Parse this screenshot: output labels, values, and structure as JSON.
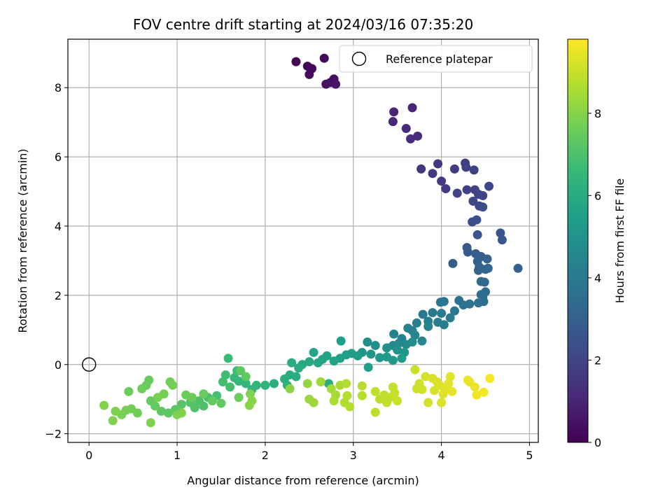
{
  "chart_data": {
    "type": "scatter",
    "title": "FOV centre drift starting at 2024/03/16 07:35:20",
    "xlabel": "Angular distance from reference (arcmin)",
    "ylabel": "Rotation from reference (arcmin)",
    "xlim": [
      -0.24,
      5.1
    ],
    "ylim": [
      -2.25,
      9.4
    ],
    "x_ticks": [
      0,
      1,
      2,
      3,
      4,
      5
    ],
    "y_ticks": [
      -2,
      0,
      2,
      4,
      6,
      8
    ],
    "grid": true,
    "colormap": "viridis",
    "colorbar": {
      "label": "Hours from first FF file",
      "range": [
        0,
        9.8
      ],
      "ticks": [
        0,
        2,
        4,
        6,
        8
      ]
    },
    "legend": {
      "position": "top-right",
      "entries": [
        {
          "label": "Reference platepar",
          "marker": "open-circle"
        }
      ]
    },
    "reference_point": {
      "x": 0,
      "y": 0
    },
    "points": [
      {
        "x": 2.35,
        "y": 8.75,
        "hours": 0.1
      },
      {
        "x": 2.48,
        "y": 8.62,
        "hours": 0.15
      },
      {
        "x": 2.53,
        "y": 8.55,
        "hours": 0.2
      },
      {
        "x": 2.67,
        "y": 8.85,
        "hours": 0.25
      },
      {
        "x": 2.5,
        "y": 8.38,
        "hours": 0.3
      },
      {
        "x": 2.78,
        "y": 8.25,
        "hours": 0.35
      },
      {
        "x": 2.74,
        "y": 8.15,
        "hours": 0.4
      },
      {
        "x": 2.69,
        "y": 8.1,
        "hours": 0.45
      },
      {
        "x": 2.8,
        "y": 8.1,
        "hours": 0.5
      },
      {
        "x": 3.46,
        "y": 7.3,
        "hours": 1.0
      },
      {
        "x": 3.67,
        "y": 7.42,
        "hours": 1.05
      },
      {
        "x": 3.45,
        "y": 7.02,
        "hours": 1.1
      },
      {
        "x": 3.6,
        "y": 6.82,
        "hours": 1.15
      },
      {
        "x": 3.73,
        "y": 6.6,
        "hours": 1.2
      },
      {
        "x": 3.65,
        "y": 6.52,
        "hours": 1.25
      },
      {
        "x": 3.96,
        "y": 5.8,
        "hours": 1.55
      },
      {
        "x": 3.77,
        "y": 5.65,
        "hours": 1.6
      },
      {
        "x": 3.9,
        "y": 5.52,
        "hours": 1.62
      },
      {
        "x": 4.0,
        "y": 5.3,
        "hours": 1.65
      },
      {
        "x": 4.05,
        "y": 5.08,
        "hours": 1.7
      },
      {
        "x": 4.15,
        "y": 5.65,
        "hours": 1.75
      },
      {
        "x": 4.27,
        "y": 5.82,
        "hours": 1.8
      },
      {
        "x": 4.28,
        "y": 5.7,
        "hours": 1.82
      },
      {
        "x": 4.37,
        "y": 5.62,
        "hours": 1.85
      },
      {
        "x": 4.29,
        "y": 5.05,
        "hours": 1.9
      },
      {
        "x": 4.38,
        "y": 5.05,
        "hours": 1.92
      },
      {
        "x": 4.18,
        "y": 4.95,
        "hours": 1.95
      },
      {
        "x": 4.42,
        "y": 4.92,
        "hours": 2.0
      },
      {
        "x": 4.47,
        "y": 4.88,
        "hours": 2.02
      },
      {
        "x": 4.54,
        "y": 5.15,
        "hours": 2.05
      },
      {
        "x": 4.36,
        "y": 4.72,
        "hours": 2.1
      },
      {
        "x": 4.43,
        "y": 4.58,
        "hours": 2.15
      },
      {
        "x": 4.47,
        "y": 4.55,
        "hours": 2.2
      },
      {
        "x": 4.35,
        "y": 4.12,
        "hours": 2.3
      },
      {
        "x": 4.4,
        "y": 4.18,
        "hours": 2.35
      },
      {
        "x": 4.41,
        "y": 3.75,
        "hours": 2.45
      },
      {
        "x": 4.67,
        "y": 3.8,
        "hours": 2.6
      },
      {
        "x": 4.69,
        "y": 3.6,
        "hours": 2.65
      },
      {
        "x": 4.29,
        "y": 3.38,
        "hours": 2.7
      },
      {
        "x": 4.3,
        "y": 3.25,
        "hours": 2.75
      },
      {
        "x": 4.39,
        "y": 3.2,
        "hours": 2.8
      },
      {
        "x": 4.45,
        "y": 3.12,
        "hours": 2.85
      },
      {
        "x": 4.13,
        "y": 2.92,
        "hours": 2.9
      },
      {
        "x": 4.41,
        "y": 2.98,
        "hours": 2.95
      },
      {
        "x": 4.52,
        "y": 3.05,
        "hours": 3.0
      },
      {
        "x": 4.87,
        "y": 2.78,
        "hours": 3.0
      },
      {
        "x": 4.43,
        "y": 2.82,
        "hours": 3.05
      },
      {
        "x": 4.42,
        "y": 2.72,
        "hours": 3.1
      },
      {
        "x": 4.5,
        "y": 2.75,
        "hours": 3.15
      },
      {
        "x": 4.53,
        "y": 2.78,
        "hours": 3.18
      },
      {
        "x": 4.45,
        "y": 2.4,
        "hours": 3.25
      },
      {
        "x": 4.49,
        "y": 2.38,
        "hours": 3.3
      },
      {
        "x": 4.5,
        "y": 2.1,
        "hours": 3.4
      },
      {
        "x": 4.45,
        "y": 2.02,
        "hours": 3.45
      },
      {
        "x": 4.47,
        "y": 1.95,
        "hours": 3.5
      },
      {
        "x": 4.48,
        "y": 1.82,
        "hours": 3.55
      },
      {
        "x": 4.42,
        "y": 1.78,
        "hours": 3.6
      },
      {
        "x": 4.2,
        "y": 1.85,
        "hours": 3.65
      },
      {
        "x": 4.25,
        "y": 1.72,
        "hours": 3.7
      },
      {
        "x": 4.32,
        "y": 1.75,
        "hours": 3.75
      },
      {
        "x": 4.03,
        "y": 1.82,
        "hours": 3.8
      },
      {
        "x": 3.99,
        "y": 1.8,
        "hours": 3.85
      },
      {
        "x": 4.15,
        "y": 1.55,
        "hours": 3.9
      },
      {
        "x": 3.79,
        "y": 1.45,
        "hours": 3.95
      },
      {
        "x": 3.9,
        "y": 1.5,
        "hours": 4.0
      },
      {
        "x": 4.0,
        "y": 1.48,
        "hours": 4.05
      },
      {
        "x": 4.1,
        "y": 1.35,
        "hours": 4.1
      },
      {
        "x": 3.72,
        "y": 1.2,
        "hours": 4.15
      },
      {
        "x": 3.85,
        "y": 1.25,
        "hours": 4.18
      },
      {
        "x": 3.96,
        "y": 1.22,
        "hours": 4.2
      },
      {
        "x": 4.03,
        "y": 1.15,
        "hours": 4.25
      },
      {
        "x": 3.62,
        "y": 1.05,
        "hours": 4.3
      },
      {
        "x": 3.67,
        "y": 0.98,
        "hours": 4.35
      },
      {
        "x": 3.85,
        "y": 1.1,
        "hours": 4.38
      },
      {
        "x": 3.46,
        "y": 0.88,
        "hours": 4.4
      },
      {
        "x": 3.55,
        "y": 0.75,
        "hours": 4.45
      },
      {
        "x": 3.7,
        "y": 0.85,
        "hours": 4.5
      },
      {
        "x": 3.78,
        "y": 0.68,
        "hours": 4.55
      },
      {
        "x": 3.45,
        "y": 0.55,
        "hours": 4.6
      },
      {
        "x": 3.52,
        "y": 0.62,
        "hours": 4.65
      },
      {
        "x": 3.6,
        "y": 0.58,
        "hours": 4.7
      },
      {
        "x": 3.67,
        "y": 0.65,
        "hours": 4.75
      },
      {
        "x": 3.16,
        "y": 0.65,
        "hours": 4.8
      },
      {
        "x": 3.25,
        "y": 0.55,
        "hours": 4.85
      },
      {
        "x": 3.38,
        "y": 0.48,
        "hours": 4.9
      },
      {
        "x": 3.5,
        "y": 0.42,
        "hours": 4.95
      },
      {
        "x": 3.58,
        "y": 0.35,
        "hours": 5.0
      },
      {
        "x": 3.1,
        "y": 0.35,
        "hours": 5.05
      },
      {
        "x": 3.2,
        "y": 0.3,
        "hours": 5.1
      },
      {
        "x": 3.3,
        "y": 0.2,
        "hours": 5.15
      },
      {
        "x": 3.38,
        "y": 0.22,
        "hours": 5.2
      },
      {
        "x": 3.45,
        "y": 0.12,
        "hours": 5.25
      },
      {
        "x": 3.55,
        "y": 0.18,
        "hours": 5.3
      },
      {
        "x": 3.05,
        "y": 0.25,
        "hours": 5.35
      },
      {
        "x": 2.98,
        "y": 0.32,
        "hours": 5.4
      },
      {
        "x": 2.92,
        "y": 0.28,
        "hours": 5.45
      },
      {
        "x": 3.17,
        "y": -0.08,
        "hours": 5.5
      },
      {
        "x": 2.86,
        "y": 0.68,
        "hours": 5.5
      },
      {
        "x": 2.85,
        "y": 0.18,
        "hours": 5.55
      },
      {
        "x": 2.78,
        "y": 0.1,
        "hours": 5.6
      },
      {
        "x": 2.7,
        "y": 0.25,
        "hours": 5.65
      },
      {
        "x": 2.65,
        "y": 0.15,
        "hours": 5.7
      },
      {
        "x": 2.55,
        "y": 0.35,
        "hours": 5.75
      },
      {
        "x": 2.6,
        "y": 0.05,
        "hours": 5.8
      },
      {
        "x": 2.5,
        "y": 0.08,
        "hours": 5.85
      },
      {
        "x": 2.42,
        "y": 0.0,
        "hours": 5.9
      },
      {
        "x": 2.38,
        "y": -0.1,
        "hours": 5.95
      },
      {
        "x": 2.3,
        "y": 0.05,
        "hours": 6.0
      },
      {
        "x": 2.28,
        "y": -0.3,
        "hours": 6.05
      },
      {
        "x": 2.35,
        "y": -0.35,
        "hours": 6.1
      },
      {
        "x": 2.22,
        "y": -0.42,
        "hours": 6.15
      },
      {
        "x": 2.1,
        "y": -0.55,
        "hours": 6.2
      },
      {
        "x": 2.72,
        "y": -0.55,
        "hours": 6.1
      },
      {
        "x": 2.25,
        "y": -0.6,
        "hours": 6.25
      },
      {
        "x": 2.0,
        "y": -0.6,
        "hours": 6.3
      },
      {
        "x": 1.85,
        "y": -0.72,
        "hours": 6.4
      },
      {
        "x": 1.9,
        "y": -0.6,
        "hours": 6.45
      },
      {
        "x": 1.78,
        "y": -0.55,
        "hours": 6.5
      },
      {
        "x": 1.7,
        "y": -0.48,
        "hours": 6.55
      },
      {
        "x": 1.65,
        "y": -0.38,
        "hours": 6.6
      },
      {
        "x": 1.58,
        "y": 0.18,
        "hours": 6.65
      },
      {
        "x": 1.68,
        "y": -0.18,
        "hours": 6.7
      },
      {
        "x": 1.55,
        "y": -0.3,
        "hours": 6.75
      },
      {
        "x": 1.52,
        "y": -0.5,
        "hours": 6.8
      },
      {
        "x": 1.6,
        "y": -0.65,
        "hours": 6.85
      },
      {
        "x": 1.45,
        "y": -0.9,
        "hours": 6.9
      },
      {
        "x": 1.35,
        "y": -0.95,
        "hours": 6.95
      },
      {
        "x": 1.25,
        "y": -1.05,
        "hours": 7.0
      },
      {
        "x": 1.3,
        "y": -1.2,
        "hours": 7.05
      },
      {
        "x": 1.2,
        "y": -1.25,
        "hours": 7.1
      },
      {
        "x": 1.15,
        "y": -1.1,
        "hours": 7.15
      },
      {
        "x": 1.05,
        "y": -1.15,
        "hours": 7.2
      },
      {
        "x": 0.98,
        "y": -1.3,
        "hours": 7.25
      },
      {
        "x": 0.9,
        "y": -1.4,
        "hours": 7.3
      },
      {
        "x": 0.82,
        "y": -1.35,
        "hours": 7.35
      },
      {
        "x": 0.75,
        "y": -1.2,
        "hours": 7.4
      },
      {
        "x": 0.7,
        "y": -1.05,
        "hours": 7.45
      },
      {
        "x": 0.68,
        "y": -0.45,
        "hours": 7.5
      },
      {
        "x": 0.65,
        "y": -0.6,
        "hours": 7.52
      },
      {
        "x": 0.45,
        "y": -0.78,
        "hours": 7.55
      },
      {
        "x": 0.6,
        "y": -0.7,
        "hours": 7.6
      },
      {
        "x": 0.55,
        "y": -1.4,
        "hours": 7.65
      },
      {
        "x": 0.48,
        "y": -1.28,
        "hours": 7.7
      },
      {
        "x": 0.42,
        "y": -1.32,
        "hours": 7.75
      },
      {
        "x": 0.37,
        "y": -1.45,
        "hours": 7.8
      },
      {
        "x": 0.3,
        "y": -1.35,
        "hours": 7.85
      },
      {
        "x": 0.27,
        "y": -1.62,
        "hours": 7.9
      },
      {
        "x": 0.17,
        "y": -1.18,
        "hours": 7.95
      },
      {
        "x": 0.7,
        "y": -1.68,
        "hours": 7.9
      },
      {
        "x": 0.78,
        "y": -0.95,
        "hours": 7.8
      },
      {
        "x": 0.85,
        "y": -0.85,
        "hours": 7.75
      },
      {
        "x": 0.92,
        "y": -0.5,
        "hours": 7.7
      },
      {
        "x": 0.95,
        "y": -0.6,
        "hours": 7.72
      },
      {
        "x": 1.0,
        "y": -1.45,
        "hours": 7.85
      },
      {
        "x": 1.05,
        "y": -1.4,
        "hours": 7.9
      },
      {
        "x": 1.1,
        "y": -0.88,
        "hours": 7.6
      },
      {
        "x": 1.17,
        "y": -0.95,
        "hours": 7.55
      },
      {
        "x": 1.3,
        "y": -0.85,
        "hours": 7.5
      },
      {
        "x": 1.4,
        "y": -1.05,
        "hours": 7.45
      },
      {
        "x": 1.5,
        "y": -1.12,
        "hours": 7.4
      },
      {
        "x": 1.7,
        "y": -0.95,
        "hours": 7.6
      },
      {
        "x": 1.83,
        "y": -0.85,
        "hours": 7.9
      },
      {
        "x": 1.85,
        "y": -1.05,
        "hours": 8.0
      },
      {
        "x": 1.82,
        "y": -1.18,
        "hours": 8.05
      },
      {
        "x": 1.78,
        "y": -0.35,
        "hours": 7.4
      },
      {
        "x": 1.72,
        "y": -0.18,
        "hours": 7.3
      },
      {
        "x": 2.28,
        "y": -0.7,
        "hours": 8.1
      },
      {
        "x": 2.48,
        "y": -0.55,
        "hours": 8.2
      },
      {
        "x": 2.5,
        "y": -1.0,
        "hours": 8.3
      },
      {
        "x": 2.55,
        "y": -1.1,
        "hours": 8.35
      },
      {
        "x": 2.63,
        "y": -0.5,
        "hours": 8.4
      },
      {
        "x": 2.75,
        "y": -0.7,
        "hours": 8.45
      },
      {
        "x": 2.8,
        "y": -0.88,
        "hours": 8.5
      },
      {
        "x": 2.85,
        "y": -0.6,
        "hours": 8.55
      },
      {
        "x": 2.78,
        "y": -1.05,
        "hours": 8.6
      },
      {
        "x": 2.9,
        "y": -1.1,
        "hours": 8.62
      },
      {
        "x": 2.92,
        "y": -0.55,
        "hours": 8.65
      },
      {
        "x": 2.93,
        "y": -0.9,
        "hours": 8.68
      },
      {
        "x": 2.96,
        "y": -1.22,
        "hours": 8.7
      },
      {
        "x": 3.1,
        "y": -0.9,
        "hours": 8.72
      },
      {
        "x": 3.1,
        "y": -0.62,
        "hours": 8.75
      },
      {
        "x": 3.25,
        "y": -1.38,
        "hours": 8.8
      },
      {
        "x": 3.25,
        "y": -0.78,
        "hours": 8.82
      },
      {
        "x": 3.3,
        "y": -1.0,
        "hours": 8.85
      },
      {
        "x": 3.35,
        "y": -0.88,
        "hours": 8.88
      },
      {
        "x": 3.38,
        "y": -1.1,
        "hours": 8.9
      },
      {
        "x": 3.42,
        "y": -0.95,
        "hours": 8.92
      },
      {
        "x": 3.45,
        "y": -0.65,
        "hours": 8.95
      },
      {
        "x": 3.47,
        "y": -0.82,
        "hours": 8.98
      },
      {
        "x": 3.5,
        "y": -1.05,
        "hours": 9.0
      },
      {
        "x": 3.7,
        "y": -0.15,
        "hours": 9.0
      },
      {
        "x": 3.72,
        "y": -0.7,
        "hours": 9.05
      },
      {
        "x": 3.75,
        "y": -0.55,
        "hours": 9.1
      },
      {
        "x": 3.78,
        "y": -0.72,
        "hours": 9.12
      },
      {
        "x": 3.85,
        "y": -1.1,
        "hours": 9.15
      },
      {
        "x": 3.82,
        "y": -0.35,
        "hours": 9.18
      },
      {
        "x": 3.9,
        "y": -0.4,
        "hours": 9.2
      },
      {
        "x": 3.92,
        "y": -0.75,
        "hours": 9.22
      },
      {
        "x": 3.95,
        "y": -0.5,
        "hours": 9.25
      },
      {
        "x": 3.98,
        "y": -0.6,
        "hours": 9.28
      },
      {
        "x": 4.0,
        "y": -1.1,
        "hours": 9.3
      },
      {
        "x": 4.02,
        "y": -0.85,
        "hours": 9.32
      },
      {
        "x": 4.05,
        "y": -0.7,
        "hours": 9.35
      },
      {
        "x": 4.08,
        "y": -0.55,
        "hours": 9.38
      },
      {
        "x": 4.1,
        "y": -0.35,
        "hours": 9.4
      },
      {
        "x": 4.12,
        "y": -0.78,
        "hours": 9.42
      },
      {
        "x": 4.3,
        "y": -0.45,
        "hours": 9.5
      },
      {
        "x": 4.32,
        "y": -0.5,
        "hours": 9.52
      },
      {
        "x": 4.38,
        "y": -0.65,
        "hours": 9.55
      },
      {
        "x": 4.4,
        "y": -0.88,
        "hours": 9.6
      },
      {
        "x": 4.48,
        "y": -0.8,
        "hours": 9.65
      },
      {
        "x": 4.55,
        "y": -0.4,
        "hours": 9.7
      }
    ]
  }
}
